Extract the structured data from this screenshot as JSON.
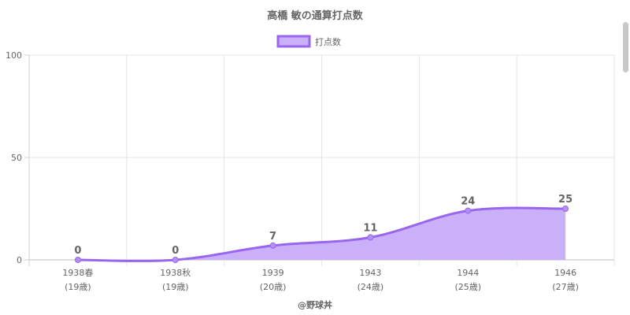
{
  "chart_data": {
    "type": "area",
    "title": "高橋 敏の通算打点数",
    "legend": {
      "position": "top",
      "entries": [
        "打点数"
      ]
    },
    "categories": [
      "1938春",
      "1938秋",
      "1939",
      "1943",
      "1944",
      "1946"
    ],
    "sub_labels": [
      "(19歳)",
      "(19歳)",
      "(20歳)",
      "(24歳)",
      "(25歳)",
      "(27歳)"
    ],
    "series": [
      {
        "name": "打点数",
        "values": [
          0,
          0,
          7,
          11,
          24,
          25
        ]
      }
    ],
    "ylim": [
      0,
      100
    ],
    "yticks": [
      "0",
      "50",
      "100"
    ],
    "grid": true,
    "colors": {
      "line": "#9966ee",
      "fill": "#c9b0f8",
      "point": "#b390f5"
    }
  },
  "footer": "@野球丼"
}
